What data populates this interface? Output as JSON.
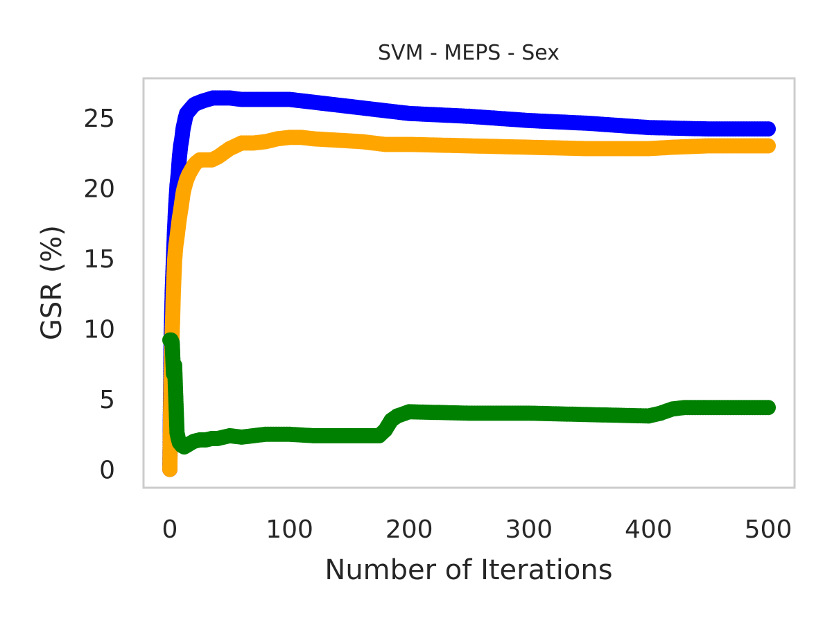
{
  "chart_data": {
    "type": "line",
    "title": "SVM - MEPS - Sex",
    "xlabel": "Number of Iterations",
    "ylabel": "GSR (%)",
    "xlim": [
      -22,
      522
    ],
    "ylim": [
      -1.3,
      27.8
    ],
    "xticks": [
      0,
      100,
      200,
      300,
      400,
      500
    ],
    "yticks": [
      0,
      5,
      10,
      15,
      20,
      25
    ],
    "grid": false,
    "series": [
      {
        "color": "#0000ff",
        "markers": true,
        "x": [
          0,
          1,
          2,
          3,
          4,
          5,
          6,
          7,
          8,
          9,
          10,
          11,
          12,
          13,
          14,
          15,
          16,
          18,
          20,
          22,
          25,
          28,
          32,
          36,
          40,
          50,
          60,
          70,
          80,
          90,
          100,
          110,
          120,
          140,
          160,
          180,
          200,
          250,
          300,
          350,
          400,
          450,
          500
        ],
        "y": [
          0,
          8.9,
          12.7,
          15.0,
          17.2,
          18.9,
          20.2,
          21.0,
          22.2,
          23.0,
          23.5,
          24.2,
          24.6,
          25.0,
          25.3,
          25.4,
          25.5,
          25.7,
          25.9,
          26.0,
          26.1,
          26.2,
          26.3,
          26.4,
          26.4,
          26.4,
          26.3,
          26.3,
          26.3,
          26.3,
          26.3,
          26.2,
          26.1,
          25.9,
          25.7,
          25.5,
          25.3,
          25.1,
          24.8,
          24.6,
          24.3,
          24.2,
          24.2
        ]
      },
      {
        "color": "#ffa500",
        "markers": true,
        "x": [
          0,
          1,
          2,
          3,
          4,
          5,
          6,
          7,
          8,
          9,
          10,
          11,
          12,
          13,
          14,
          15,
          16,
          18,
          20,
          22,
          25,
          30,
          35,
          40,
          45,
          50,
          60,
          70,
          80,
          90,
          100,
          110,
          120,
          140,
          160,
          180,
          200,
          250,
          300,
          350,
          380,
          400,
          420,
          450,
          480,
          500
        ],
        "y": [
          0,
          6.5,
          9.8,
          12.8,
          14.9,
          15.9,
          16.5,
          17.2,
          17.9,
          18.4,
          19.0,
          19.6,
          20.0,
          20.3,
          20.6,
          20.8,
          21.0,
          21.3,
          21.6,
          21.8,
          22.0,
          22.0,
          22.0,
          22.2,
          22.5,
          22.8,
          23.2,
          23.2,
          23.3,
          23.5,
          23.6,
          23.6,
          23.5,
          23.4,
          23.3,
          23.1,
          23.1,
          23.0,
          22.9,
          22.8,
          22.8,
          22.8,
          22.9,
          23.0,
          23.0,
          23.0
        ]
      },
      {
        "color": "#008000",
        "markers": true,
        "x": [
          0,
          1,
          2,
          3,
          4,
          5,
          6,
          7,
          8,
          9,
          10,
          12,
          14,
          16,
          18,
          20,
          25,
          30,
          35,
          40,
          50,
          60,
          70,
          80,
          100,
          120,
          140,
          160,
          175,
          180,
          185,
          190,
          200,
          250,
          300,
          350,
          400,
          410,
          420,
          430,
          450,
          480,
          500
        ],
        "y": [
          9.2,
          9.2,
          9.0,
          6.8,
          7.4,
          5.0,
          2.6,
          2.2,
          1.9,
          1.8,
          1.7,
          1.6,
          1.7,
          1.8,
          1.9,
          2.0,
          2.1,
          2.1,
          2.2,
          2.2,
          2.4,
          2.3,
          2.4,
          2.5,
          2.5,
          2.4,
          2.4,
          2.4,
          2.4,
          2.8,
          3.5,
          3.8,
          4.1,
          4.0,
          4.0,
          3.9,
          3.8,
          4.0,
          4.3,
          4.4,
          4.4,
          4.4,
          4.4
        ]
      }
    ]
  }
}
